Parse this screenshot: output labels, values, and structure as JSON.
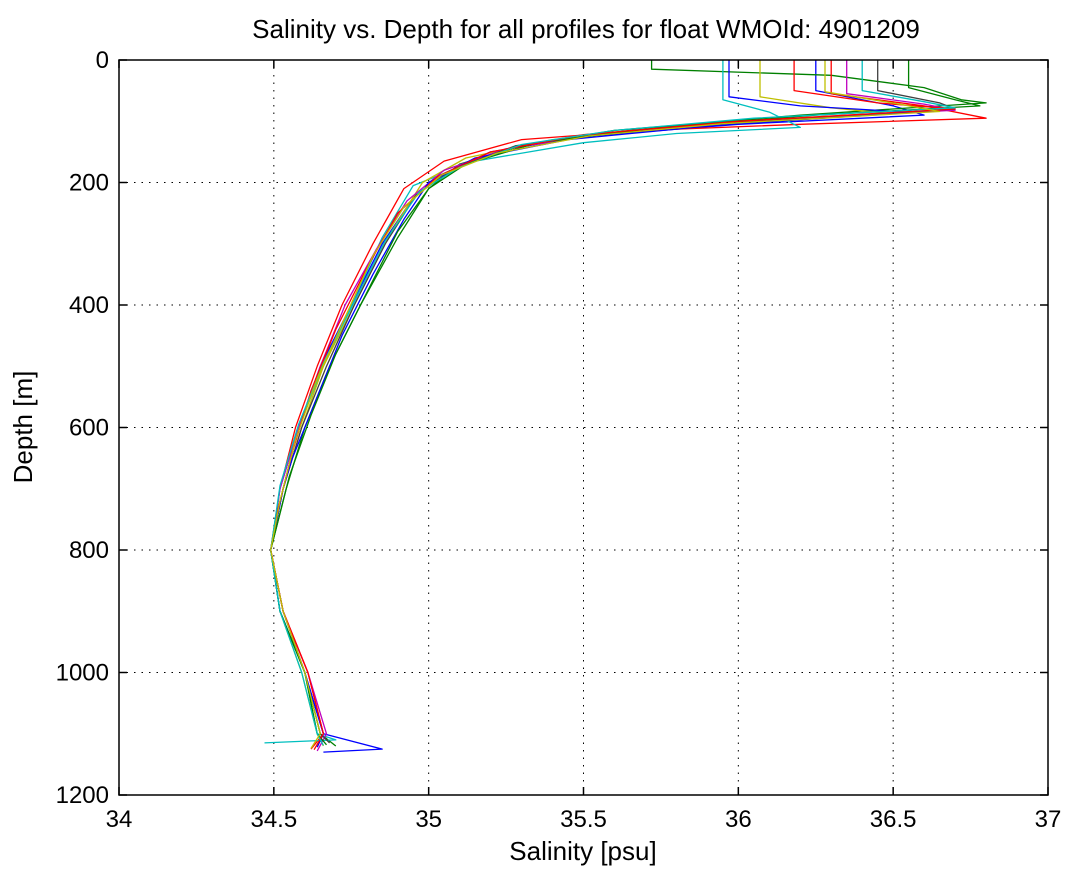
{
  "chart_data": {
    "type": "line",
    "title": "Salinity vs. Depth for all profiles for float WMOId: 4901209",
    "xlabel": "Salinity [psu]",
    "ylabel": "Depth [m]",
    "xlim": [
      34,
      37
    ],
    "ylim": [
      0,
      1200
    ],
    "y_reversed": true,
    "grid": true,
    "grid_style": "dotted",
    "x_ticks": [
      34,
      34.5,
      35,
      35.5,
      36,
      36.5,
      37
    ],
    "x_tick_labels": [
      "34",
      "34.5",
      "35",
      "35.5",
      "36",
      "36.5",
      "37"
    ],
    "y_ticks": [
      0,
      200,
      400,
      600,
      800,
      1000,
      1200
    ],
    "y_tick_labels": [
      "0",
      "200",
      "400",
      "600",
      "800",
      "1000",
      "1200"
    ],
    "series_colors": [
      "#0000ff",
      "#008000",
      "#ff0000",
      "#00bfbf",
      "#bfbf00",
      "#bf00bf",
      "#404040"
    ],
    "series": [
      {
        "color": "#0000ff",
        "points": [
          [
            36.25,
            0
          ],
          [
            36.25,
            50
          ],
          [
            36.5,
            75
          ],
          [
            36.6,
            90
          ],
          [
            36.0,
            105
          ],
          [
            35.5,
            125
          ],
          [
            35.2,
            150
          ],
          [
            35.05,
            185
          ],
          [
            34.95,
            225
          ],
          [
            34.85,
            300
          ],
          [
            34.75,
            400
          ],
          [
            34.65,
            500
          ],
          [
            34.58,
            600
          ],
          [
            34.53,
            700
          ],
          [
            34.49,
            800
          ],
          [
            34.53,
            900
          ],
          [
            34.6,
            1000
          ],
          [
            34.66,
            1100
          ],
          [
            34.85,
            1125
          ],
          [
            34.66,
            1130
          ]
        ]
      },
      {
        "color": "#008000",
        "points": [
          [
            35.72,
            0
          ],
          [
            35.72,
            15
          ],
          [
            36.3,
            25
          ],
          [
            36.6,
            45
          ],
          [
            36.72,
            65
          ],
          [
            36.8,
            70
          ],
          [
            36.2,
            90
          ],
          [
            35.6,
            115
          ],
          [
            35.3,
            140
          ],
          [
            35.1,
            170
          ],
          [
            35.0,
            210
          ],
          [
            34.9,
            290
          ],
          [
            34.78,
            400
          ],
          [
            34.68,
            500
          ],
          [
            34.6,
            600
          ],
          [
            34.54,
            700
          ],
          [
            34.49,
            800
          ],
          [
            34.52,
            900
          ],
          [
            34.6,
            1000
          ],
          [
            34.65,
            1100
          ],
          [
            34.7,
            1120
          ]
        ]
      },
      {
        "color": "#ff0000",
        "points": [
          [
            36.3,
            0
          ],
          [
            36.3,
            55
          ],
          [
            36.6,
            75
          ],
          [
            36.8,
            95
          ],
          [
            36.2,
            105
          ],
          [
            35.7,
            115
          ],
          [
            35.3,
            130
          ],
          [
            35.05,
            165
          ],
          [
            34.92,
            210
          ],
          [
            34.82,
            300
          ],
          [
            34.72,
            400
          ],
          [
            34.64,
            500
          ],
          [
            34.57,
            600
          ],
          [
            34.52,
            700
          ],
          [
            34.49,
            800
          ],
          [
            34.53,
            900
          ],
          [
            34.61,
            1000
          ],
          [
            34.66,
            1100
          ],
          [
            34.62,
            1125
          ]
        ]
      },
      {
        "color": "#00bfbf",
        "points": [
          [
            35.95,
            0
          ],
          [
            35.95,
            65
          ],
          [
            36.1,
            85
          ],
          [
            36.2,
            110
          ],
          [
            35.8,
            120
          ],
          [
            35.5,
            135
          ],
          [
            35.15,
            165
          ],
          [
            34.95,
            205
          ],
          [
            34.85,
            290
          ],
          [
            34.75,
            400
          ],
          [
            34.66,
            500
          ],
          [
            34.58,
            600
          ],
          [
            34.52,
            700
          ],
          [
            34.49,
            800
          ],
          [
            34.52,
            900
          ],
          [
            34.6,
            1000
          ],
          [
            34.64,
            1100
          ],
          [
            34.7,
            1110
          ],
          [
            34.47,
            1115
          ]
        ]
      },
      {
        "color": "#bfbf00",
        "points": [
          [
            36.07,
            0
          ],
          [
            36.07,
            60
          ],
          [
            36.3,
            78
          ],
          [
            36.5,
            88
          ],
          [
            35.8,
            110
          ],
          [
            35.4,
            130
          ],
          [
            35.12,
            160
          ],
          [
            34.98,
            200
          ],
          [
            34.88,
            280
          ],
          [
            34.76,
            400
          ],
          [
            34.66,
            500
          ],
          [
            34.59,
            600
          ],
          [
            34.53,
            700
          ],
          [
            34.49,
            800
          ],
          [
            34.52,
            900
          ],
          [
            34.59,
            1000
          ],
          [
            34.64,
            1100
          ],
          [
            34.66,
            1120
          ]
        ]
      },
      {
        "color": "#bf00bf",
        "points": [
          [
            36.35,
            0
          ],
          [
            36.35,
            55
          ],
          [
            36.6,
            72
          ],
          [
            36.7,
            82
          ],
          [
            36.0,
            100
          ],
          [
            35.6,
            118
          ],
          [
            35.25,
            145
          ],
          [
            35.05,
            180
          ],
          [
            34.93,
            230
          ],
          [
            34.83,
            310
          ],
          [
            34.73,
            400
          ],
          [
            34.65,
            500
          ],
          [
            34.58,
            600
          ],
          [
            34.52,
            700
          ],
          [
            34.49,
            800
          ],
          [
            34.53,
            900
          ],
          [
            34.61,
            1000
          ],
          [
            34.67,
            1100
          ],
          [
            34.64,
            1128
          ]
        ]
      },
      {
        "color": "#404040",
        "points": [
          [
            36.45,
            0
          ],
          [
            36.45,
            50
          ],
          [
            36.65,
            70
          ],
          [
            36.7,
            80
          ],
          [
            36.1,
            98
          ],
          [
            35.65,
            115
          ],
          [
            35.28,
            140
          ],
          [
            35.08,
            178
          ],
          [
            34.96,
            220
          ],
          [
            34.86,
            300
          ],
          [
            34.76,
            400
          ],
          [
            34.67,
            500
          ],
          [
            34.59,
            600
          ],
          [
            34.53,
            700
          ],
          [
            34.49,
            800
          ],
          [
            34.53,
            900
          ],
          [
            34.6,
            1000
          ],
          [
            34.65,
            1100
          ],
          [
            34.68,
            1115
          ]
        ]
      },
      {
        "color": "#0000ff",
        "points": [
          [
            35.97,
            0
          ],
          [
            35.97,
            60
          ],
          [
            36.2,
            75
          ],
          [
            36.55,
            85
          ],
          [
            35.9,
            108
          ],
          [
            35.45,
            130
          ],
          [
            35.15,
            160
          ],
          [
            35.0,
            200
          ],
          [
            34.92,
            260
          ],
          [
            34.82,
            350
          ],
          [
            34.72,
            450
          ],
          [
            34.64,
            550
          ],
          [
            34.56,
            650
          ],
          [
            34.53,
            700
          ],
          [
            34.49,
            800
          ],
          [
            34.52,
            900
          ],
          [
            34.6,
            1000
          ],
          [
            34.66,
            1100
          ],
          [
            34.64,
            1122
          ]
        ]
      },
      {
        "color": "#008000",
        "points": [
          [
            36.55,
            0
          ],
          [
            36.55,
            45
          ],
          [
            36.7,
            65
          ],
          [
            36.78,
            75
          ],
          [
            36.25,
            90
          ],
          [
            35.75,
            110
          ],
          [
            35.35,
            135
          ],
          [
            35.12,
            170
          ],
          [
            35.0,
            210
          ],
          [
            34.9,
            280
          ],
          [
            34.8,
            380
          ],
          [
            34.7,
            480
          ],
          [
            34.62,
            580
          ],
          [
            34.55,
            680
          ],
          [
            34.49,
            800
          ],
          [
            34.52,
            900
          ],
          [
            34.6,
            1000
          ],
          [
            34.64,
            1100
          ],
          [
            34.67,
            1118
          ]
        ]
      },
      {
        "color": "#ff0000",
        "points": [
          [
            36.18,
            0
          ],
          [
            36.18,
            50
          ],
          [
            36.45,
            70
          ],
          [
            36.7,
            80
          ],
          [
            36.0,
            100
          ],
          [
            35.5,
            122
          ],
          [
            35.2,
            150
          ],
          [
            35.03,
            190
          ],
          [
            34.9,
            250
          ],
          [
            34.8,
            340
          ],
          [
            34.7,
            440
          ],
          [
            34.62,
            540
          ],
          [
            34.56,
            640
          ],
          [
            34.51,
            740
          ],
          [
            34.49,
            800
          ],
          [
            34.53,
            900
          ],
          [
            34.61,
            1000
          ],
          [
            34.66,
            1100
          ],
          [
            34.63,
            1126
          ]
        ]
      },
      {
        "color": "#00bfbf",
        "points": [
          [
            36.4,
            0
          ],
          [
            36.4,
            50
          ],
          [
            36.6,
            68
          ],
          [
            36.7,
            78
          ],
          [
            36.05,
            95
          ],
          [
            35.6,
            115
          ],
          [
            35.3,
            138
          ],
          [
            35.1,
            175
          ],
          [
            34.97,
            215
          ],
          [
            34.86,
            295
          ],
          [
            34.76,
            395
          ],
          [
            34.66,
            495
          ],
          [
            34.58,
            595
          ],
          [
            34.52,
            695
          ],
          [
            34.49,
            800
          ],
          [
            34.52,
            900
          ],
          [
            34.59,
            1000
          ],
          [
            34.64,
            1100
          ],
          [
            34.66,
            1119
          ]
        ]
      },
      {
        "color": "#bfbf00",
        "points": [
          [
            36.28,
            0
          ],
          [
            36.28,
            52
          ],
          [
            36.52,
            72
          ],
          [
            36.65,
            84
          ],
          [
            35.95,
            104
          ],
          [
            35.52,
            124
          ],
          [
            35.22,
            152
          ],
          [
            35.04,
            188
          ],
          [
            34.92,
            240
          ],
          [
            34.82,
            320
          ],
          [
            34.73,
            420
          ],
          [
            34.64,
            520
          ],
          [
            34.57,
            620
          ],
          [
            34.52,
            720
          ],
          [
            34.49,
            800
          ],
          [
            34.53,
            900
          ],
          [
            34.6,
            1000
          ],
          [
            34.65,
            1100
          ],
          [
            34.62,
            1124
          ]
        ]
      }
    ]
  }
}
